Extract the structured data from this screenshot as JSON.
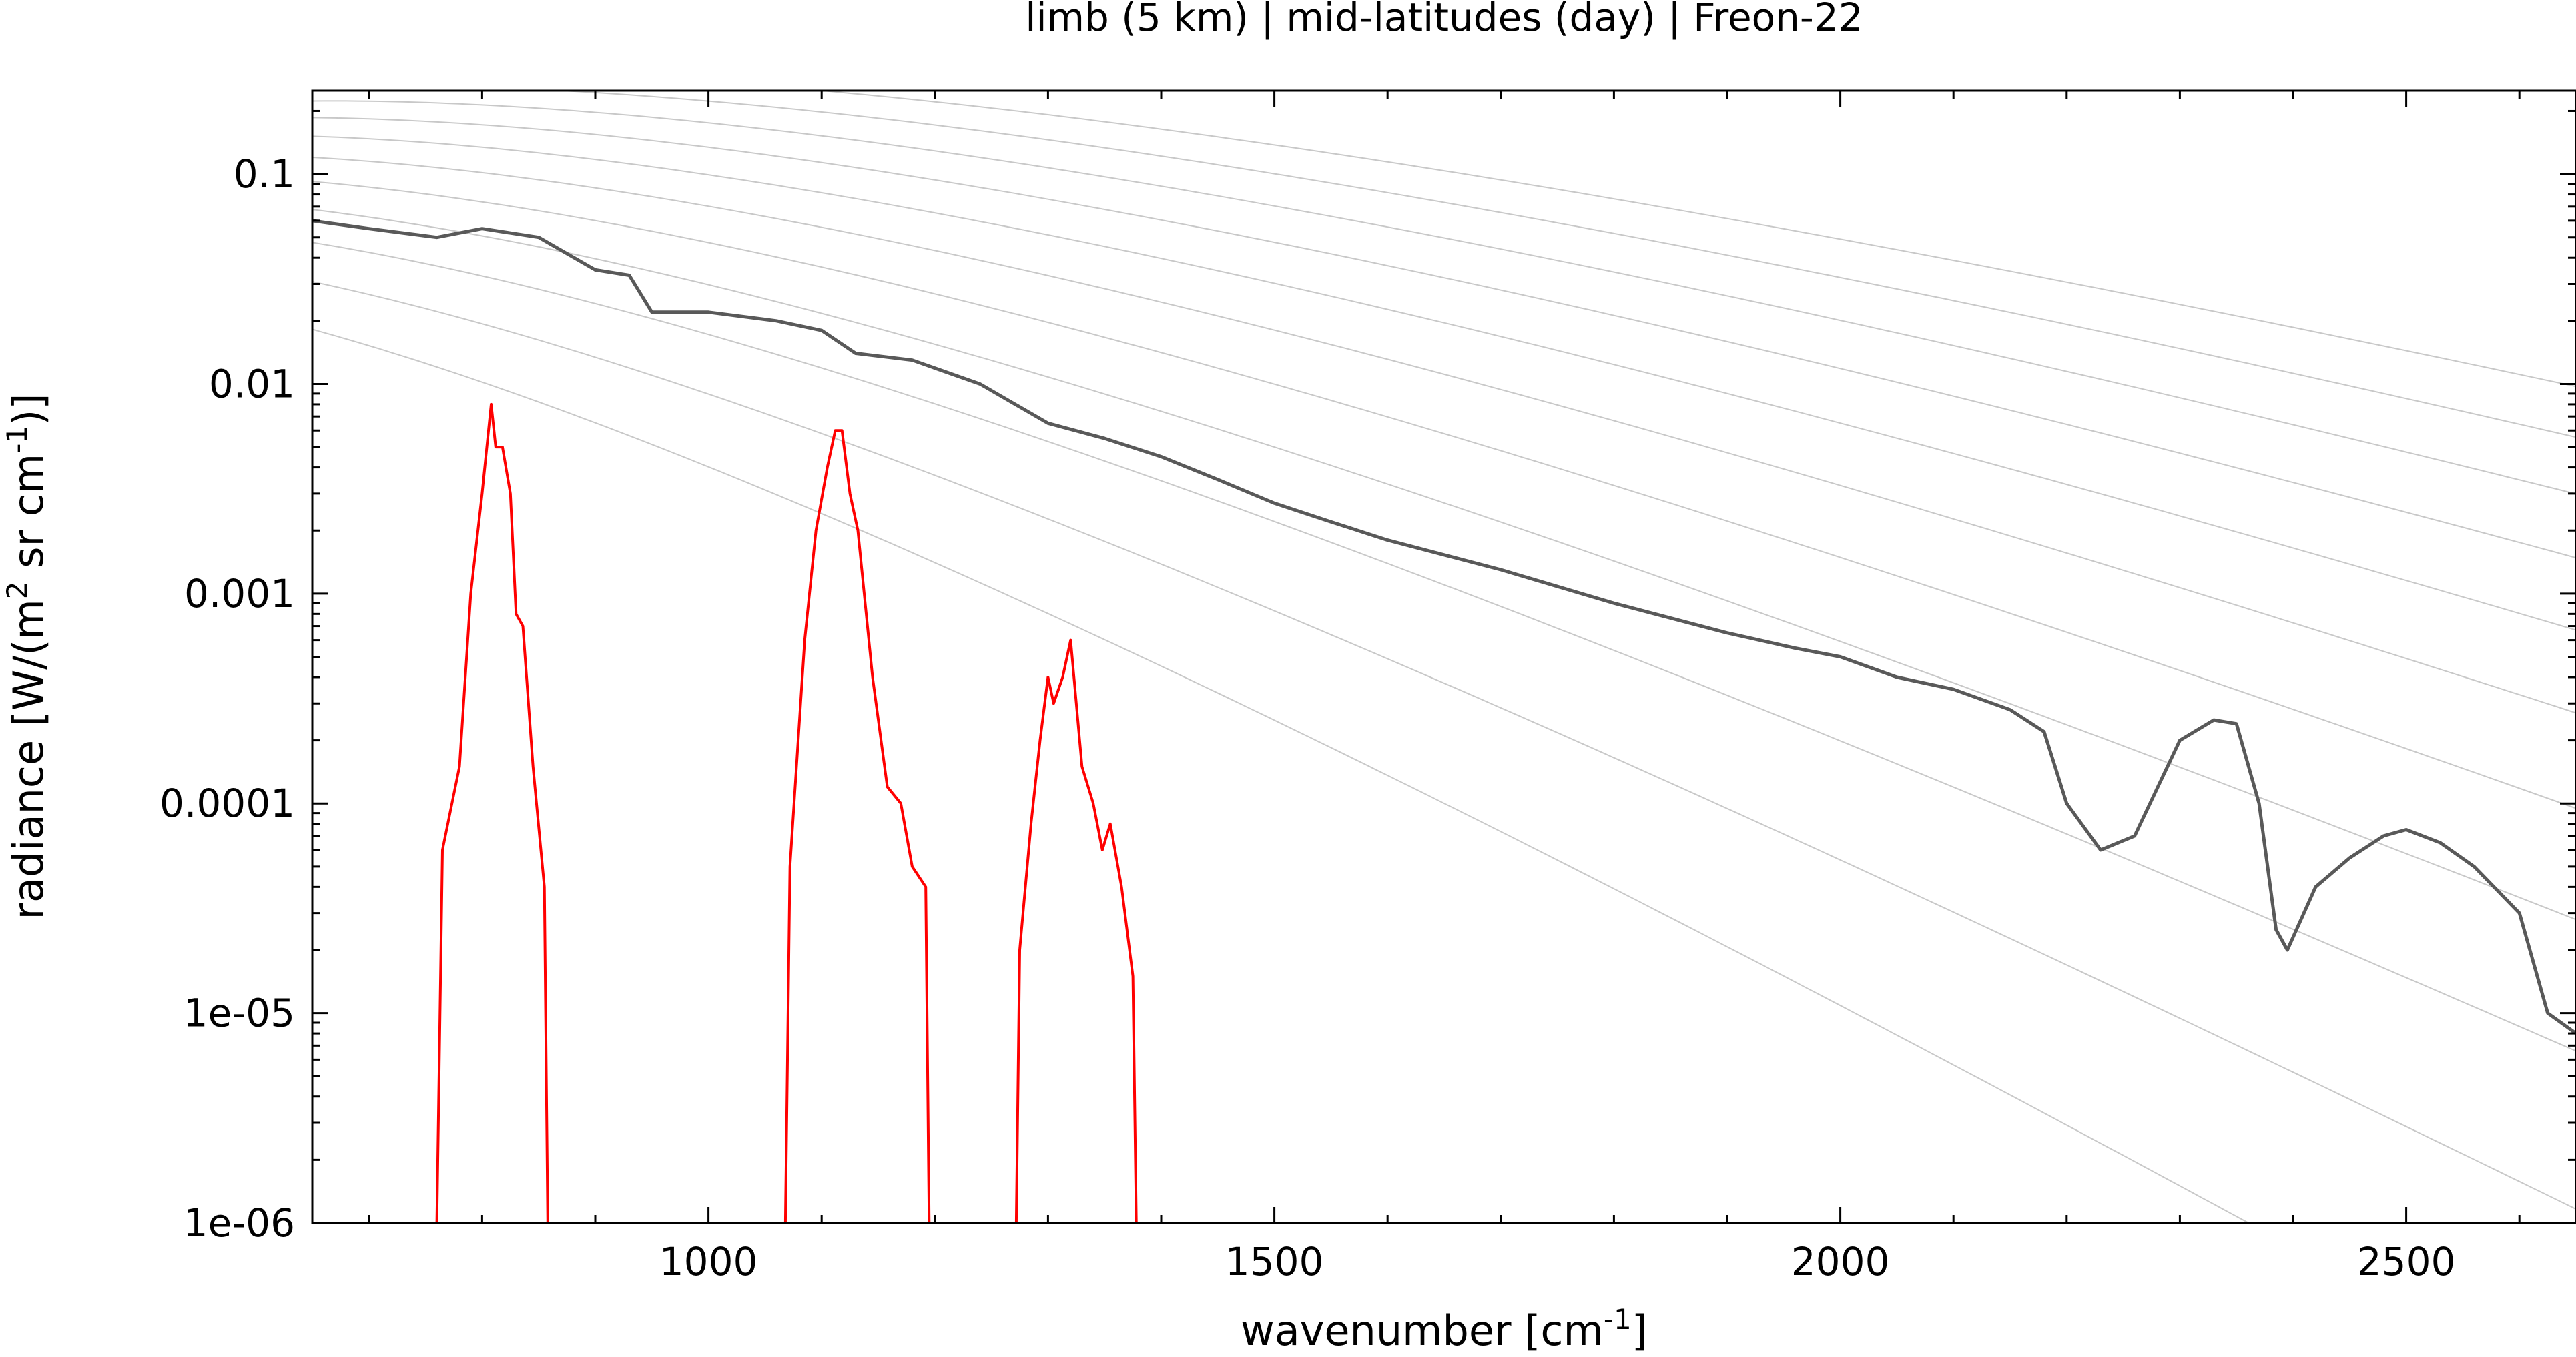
{
  "chart_data": {
    "type": "line",
    "title": "limb (5 km) | mid-latitudes (day) | Freon-22",
    "xlabel": {
      "main": "wavenumber [cm",
      "sup": "-1",
      "close": "]"
    },
    "ylabel": {
      "part1": "radiance [W/(m",
      "sup1": "2",
      "part2": " sr cm",
      "sup2": "-1",
      "part3": ")]"
    },
    "xlim": [
      650,
      2650
    ],
    "ylim": [
      1e-06,
      0.25
    ],
    "yscale": "log",
    "grid": false,
    "x_ticks": [
      1000,
      1500,
      2000,
      2500
    ],
    "x_tick_labels": [
      "1000",
      "1500",
      "2000",
      "2500"
    ],
    "y_ticks": [
      0.1,
      0.01,
      0.001,
      0.0001,
      1e-05,
      1e-06
    ],
    "y_tick_labels": [
      "0.1",
      "0.01",
      "0.001",
      "0.0001",
      "1e-05",
      "1e-06"
    ],
    "colors": {
      "total": "#595959",
      "gas": "#ff0000",
      "planck": "#c8c8c8",
      "axes": "#000000"
    },
    "planck_reference_temperatures_K": [
      180,
      200,
      220,
      240,
      260,
      280,
      300,
      320,
      340,
      360,
      380
    ],
    "series": [
      {
        "role": "total",
        "x": [
          650,
          700,
          760,
          800,
          850,
          900,
          930,
          950,
          1000,
          1060,
          1100,
          1130,
          1180,
          1240,
          1300,
          1350,
          1400,
          1450,
          1500,
          1550,
          1600,
          1700,
          1800,
          1900,
          1960,
          2000,
          2050,
          2100,
          2150,
          2180,
          2200,
          2230,
          2260,
          2300,
          2330,
          2350,
          2370,
          2385,
          2395,
          2420,
          2450,
          2480,
          2500,
          2530,
          2560,
          2600,
          2625,
          2650
        ],
        "y": [
          0.06,
          0.055,
          0.05,
          0.055,
          0.05,
          0.035,
          0.033,
          0.022,
          0.022,
          0.02,
          0.018,
          0.014,
          0.013,
          0.01,
          0.0065,
          0.0055,
          0.0045,
          0.0035,
          0.0027,
          0.0022,
          0.0018,
          0.0013,
          0.0009,
          0.00065,
          0.00055,
          0.0005,
          0.0004,
          0.00035,
          0.00028,
          0.00022,
          0.0001,
          6e-05,
          7e-05,
          0.0002,
          0.00025,
          0.00024,
          0.0001,
          2.5e-05,
          2e-05,
          4e-05,
          5.5e-05,
          7e-05,
          7.5e-05,
          6.5e-05,
          5e-05,
          3e-05,
          1e-05,
          8e-06
        ]
      },
      {
        "role": "gas",
        "x": [
          760,
          765,
          780,
          790,
          800,
          808,
          812,
          818,
          825,
          830,
          836,
          845,
          855,
          858
        ],
        "y": [
          1e-06,
          6e-05,
          0.00015,
          0.001,
          0.003,
          0.008,
          0.005,
          0.005,
          0.003,
          0.0008,
          0.0007,
          0.00015,
          4e-05,
          1e-06
        ]
      },
      {
        "role": "gas",
        "x": [
          1068,
          1072,
          1085,
          1095,
          1105,
          1112,
          1118,
          1125,
          1132,
          1145,
          1158,
          1170,
          1180,
          1192,
          1195
        ],
        "y": [
          1e-06,
          5e-05,
          0.0006,
          0.002,
          0.004,
          0.006,
          0.006,
          0.003,
          0.002,
          0.0004,
          0.00012,
          0.0001,
          5e-05,
          4e-05,
          1e-06
        ]
      },
      {
        "role": "gas",
        "x": [
          1272,
          1275,
          1285,
          1293,
          1300,
          1305,
          1313,
          1320,
          1330,
          1340,
          1348,
          1355,
          1365,
          1375,
          1378
        ],
        "y": [
          1e-06,
          2e-05,
          8e-05,
          0.0002,
          0.0004,
          0.0003,
          0.0004,
          0.0006,
          0.00015,
          0.0001,
          6e-05,
          8e-05,
          4e-05,
          1.5e-05,
          1e-06
        ]
      }
    ]
  }
}
